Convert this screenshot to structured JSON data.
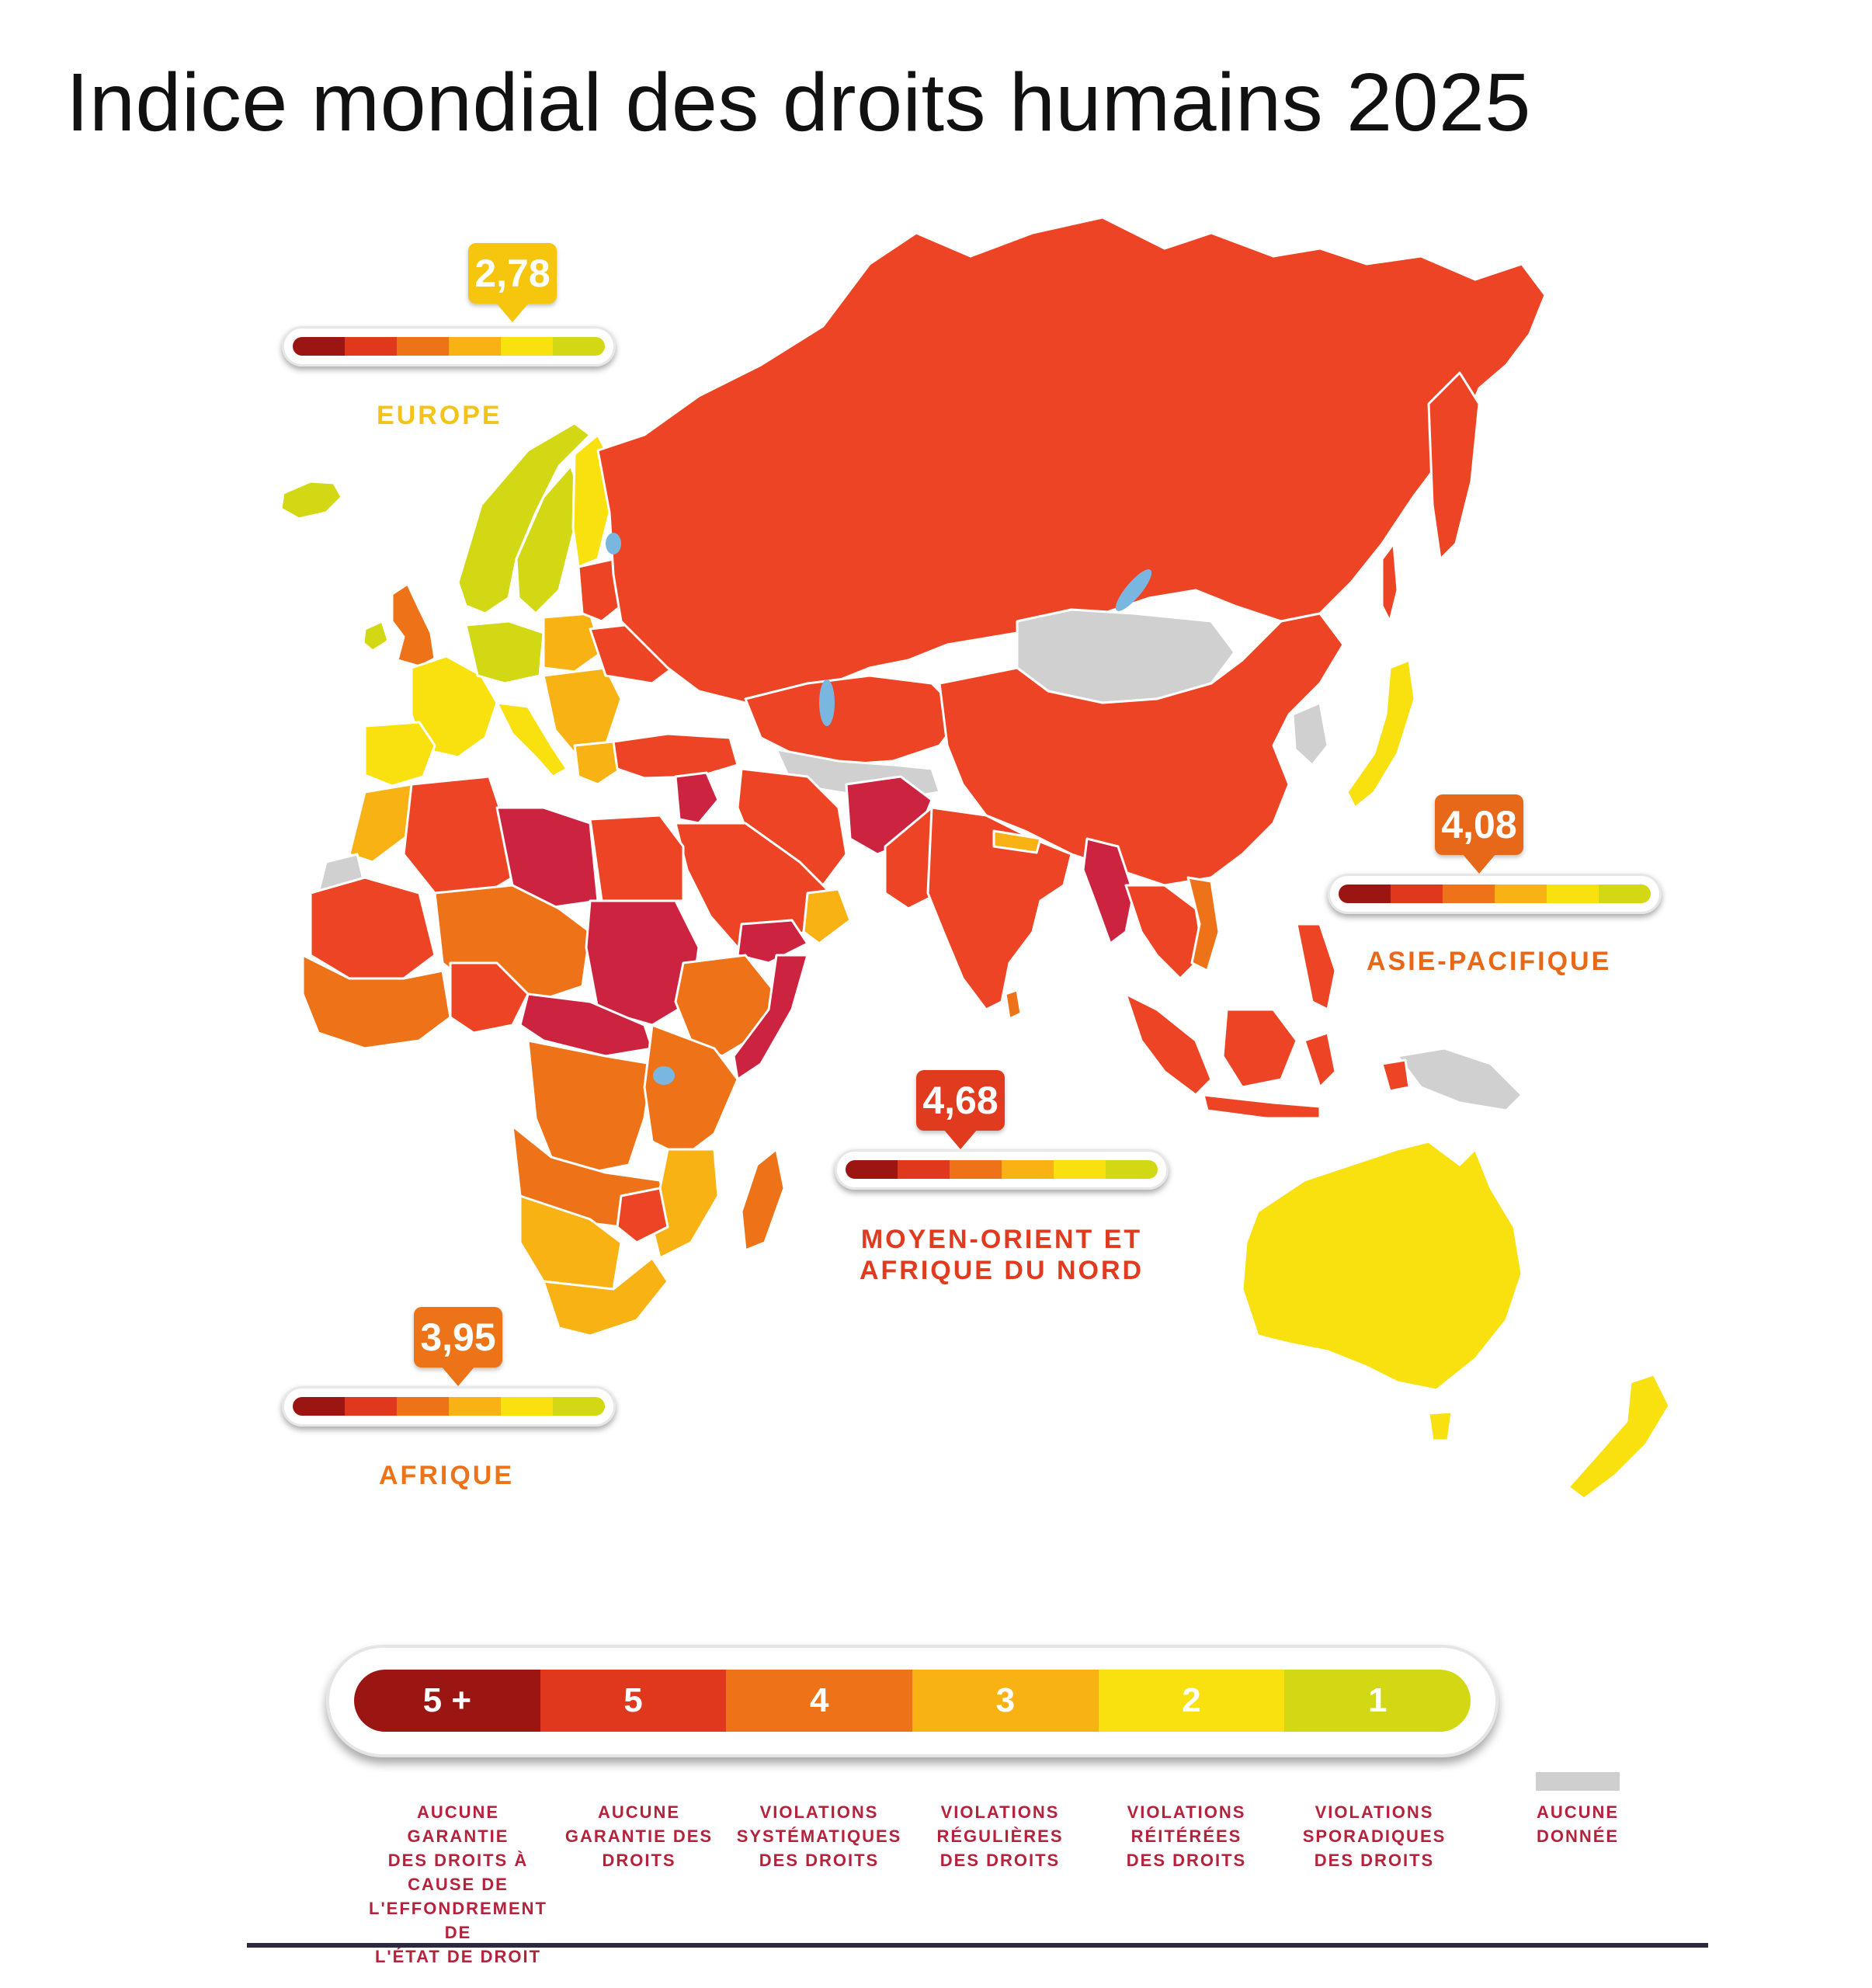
{
  "title": "Indice mondial des droits humains 2025",
  "colors": {
    "level_5plus": "#9b1512",
    "level_5": "#e0381d",
    "level_4": "#ee7318",
    "level_3": "#f9b214",
    "level_2": "#f8e10f",
    "level_1": "#d2d814",
    "no_data": "#d0d0d0",
    "collapse_crimson": "#cc2440",
    "russia_red": "#ec4424",
    "legend_text": "#b4223c"
  },
  "regions": [
    {
      "name": "EUROPE",
      "score": "2,78",
      "score_value": 2.78,
      "color": "#f6c60f",
      "name_color": "#f4c31a"
    },
    {
      "name": "ASIE-PACIFIQUE",
      "score": "4,08",
      "score_value": 4.08,
      "color": "#e8681a",
      "name_color": "#e8681a"
    },
    {
      "name": "MOYEN-ORIENT ET AFRIQUE DU NORD",
      "name_line1": "MOYEN-ORIENT ET",
      "name_line2": "AFRIQUE DU NORD",
      "score": "4,68",
      "score_value": 4.68,
      "color": "#e03a1f",
      "name_color": "#e03a1f"
    },
    {
      "name": "AFRIQUE",
      "score": "3,95",
      "score_value": 3.95,
      "color": "#ec7318",
      "name_color": "#ec7318"
    }
  ],
  "legend": {
    "levels": [
      {
        "label": "5 +",
        "description": "AUCUNE GARANTIE DES DROITS À CAUSE DE L'EFFONDREMENT DE L'ÉTAT DE DROIT",
        "lines": [
          "AUCUNE GARANTIE",
          "DES DROITS À",
          "CAUSE DE",
          "L'EFFONDREMENT DE",
          "L'ÉTAT DE DROIT"
        ]
      },
      {
        "label": "5",
        "description": "AUCUNE GARANTIE DES DROITS",
        "lines": [
          "AUCUNE",
          "GARANTIE DES",
          "DROITS"
        ]
      },
      {
        "label": "4",
        "description": "VIOLATIONS SYSTÉMATIQUES DES DROITS",
        "lines": [
          "VIOLATIONS",
          "SYSTÉMATIQUES",
          "DES DROITS"
        ]
      },
      {
        "label": "3",
        "description": "VIOLATIONS RÉGULIÈRES DES DROITS",
        "lines": [
          "VIOLATIONS",
          "RÉGULIÈRES",
          "DES DROITS"
        ]
      },
      {
        "label": "2",
        "description": "VIOLATIONS RÉITÉRÉES DES DROITS",
        "lines": [
          "VIOLATIONS",
          "RÉITÉRÉES",
          "DES DROITS"
        ]
      },
      {
        "label": "1",
        "description": "VIOLATIONS SPORADIQUES DES DROITS",
        "lines": [
          "VIOLATIONS",
          "SPORADIQUES",
          "DES DROITS"
        ]
      }
    ],
    "no_data": {
      "description": "AUCUNE DONNÉE",
      "lines": [
        "AUCUNE",
        "DONNÉE"
      ]
    }
  }
}
